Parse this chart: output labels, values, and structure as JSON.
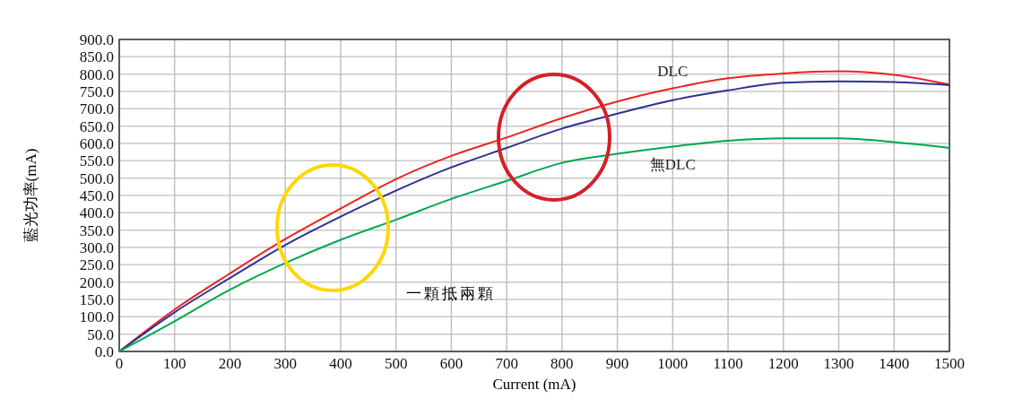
{
  "chart_data": {
    "type": "line",
    "xlabel": "Current (mA)",
    "ylabel": "藍光功率(mA)",
    "x": [
      0,
      100,
      200,
      300,
      400,
      500,
      600,
      700,
      800,
      900,
      1000,
      1100,
      1200,
      1300,
      1400,
      1500
    ],
    "series": [
      {
        "name": "DLC",
        "color": "#ee2222",
        "values": [
          0,
          121,
          225,
          324,
          412,
          497,
          564,
          617,
          673,
          721,
          759,
          788,
          802,
          808,
          798,
          770
        ]
      },
      {
        "color": "#2e3192",
        "values": [
          0,
          113,
          212,
          307,
          389,
          464,
          531,
          587,
          643,
          686,
          725,
          753,
          775,
          779,
          777,
          768
        ]
      },
      {
        "name": "無DLC",
        "color": "#00a651",
        "values": [
          0,
          87,
          178,
          255,
          322,
          380,
          440,
          492,
          544,
          570,
          591,
          608,
          615,
          615,
          604,
          587
        ]
      }
    ],
    "xlim": [
      0,
      1500
    ],
    "xticks": [
      0,
      100,
      200,
      300,
      400,
      500,
      600,
      700,
      800,
      900,
      1000,
      1100,
      1200,
      1300,
      1400,
      1500
    ],
    "ylim": [
      0,
      900
    ],
    "yticks": [
      {
        "value": 0,
        "label": "0.0"
      },
      {
        "value": 50,
        "label": "50.0"
      },
      {
        "value": 100,
        "label": "100.0"
      },
      {
        "value": 150,
        "label": "150.0"
      },
      {
        "value": 200,
        "label": "200.0"
      },
      {
        "value": 250,
        "label": "250.0"
      },
      {
        "value": 300,
        "label": "300.0"
      },
      {
        "value": 350,
        "label": "350.0"
      },
      {
        "value": 400,
        "label": "400.0"
      },
      {
        "value": 450,
        "label": "450.0"
      },
      {
        "value": 500,
        "label": "500.0"
      },
      {
        "value": 550,
        "label": "550.0"
      },
      {
        "value": 600,
        "label": "600.0"
      },
      {
        "value": 650,
        "label": "650.0"
      },
      {
        "value": 700,
        "label": "700.0"
      },
      {
        "value": 750,
        "label": "750.0"
      },
      {
        "value": 800,
        "label": "800.0"
      },
      {
        "value": 850,
        "label": "850.0"
      },
      {
        "value": 900,
        "label": "900.0"
      }
    ],
    "grid": true,
    "marker": "none",
    "line_style": "solid",
    "annotations": [
      "一顆抵兩顆"
    ]
  }
}
